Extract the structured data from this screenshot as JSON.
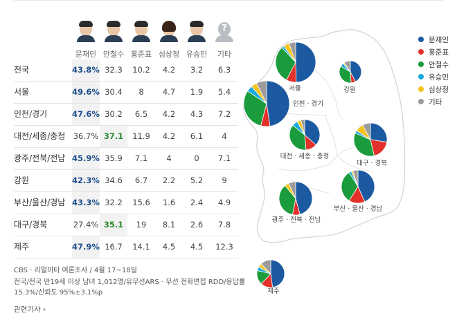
{
  "candidates": [
    "문재인",
    "안철수",
    "홍준표",
    "심상정",
    "유승민",
    "기타"
  ],
  "legend": [
    "문재인",
    "홍준표",
    "안철수",
    "유승민",
    "심상정",
    "기타"
  ],
  "colors": {
    "문재인": "#1b5aa0",
    "홍준표": "#e2312b",
    "안철수": "#1a9b3c",
    "유승민": "#1aa8e0",
    "심상정": "#f4c21c",
    "기타": "#9b9b9b"
  },
  "rows": [
    {
      "region": "전국",
      "values": [
        "43.8%",
        "32.3",
        "10.2",
        "4.2",
        "3.2",
        "6.3"
      ],
      "highlight": 0
    },
    {
      "region": "서울",
      "values": [
        "49.6%",
        "30.4",
        "8",
        "4.7",
        "1.9",
        "5.4"
      ],
      "highlight": 0
    },
    {
      "region": "인천/경기",
      "values": [
        "47.6%",
        "30.2",
        "6.5",
        "4.2",
        "4.3",
        "7.2"
      ],
      "highlight": 0
    },
    {
      "region": "대전/세종/충청",
      "values": [
        "36.7%",
        "37.1",
        "11.9",
        "4.2",
        "6.1",
        "4"
      ],
      "highlight": 1
    },
    {
      "region": "광주/전북/전남",
      "values": [
        "45.9%",
        "35.9",
        "7.1",
        "4",
        "0",
        "7.1"
      ],
      "highlight": 0
    },
    {
      "region": "강원",
      "values": [
        "42.3%",
        "34.6",
        "6.7",
        "2.2",
        "5.2",
        "9"
      ],
      "highlight": 0
    },
    {
      "region": "부산/울산/경남",
      "values": [
        "43.3%",
        "32.2",
        "15.6",
        "1.6",
        "2.4",
        "4.9"
      ],
      "highlight": 0
    },
    {
      "region": "대구/경북",
      "values": [
        "27.4%",
        "35.1",
        "19",
        "8.1",
        "2.6",
        "7.8"
      ],
      "highlight": 1
    },
    {
      "region": "제주",
      "values": [
        "47.9%",
        "16.7",
        "14.1",
        "4.5",
        "4.5",
        "12.3"
      ],
      "highlight": 0
    }
  ],
  "notes": {
    "line1": "CBS · 리얼미터 여론조사 / 4월 17~18일",
    "line2": "전국/전국 만19세 이상 남녀 1,012명/유무선ARS · 무선 전화면접 RDD/응답률",
    "line3": "15.3%/신뢰도 95%±3.1%p",
    "related": "관련기사 ›"
  },
  "chart_data": {
    "type": "pie",
    "title": "",
    "series_order": [
      "문재인",
      "홍준표",
      "안철수",
      "유승민",
      "심상정",
      "기타"
    ],
    "regions": [
      {
        "label": "서울",
        "values": [
          49.6,
          8,
          30.4,
          1.9,
          4.7,
          5.4
        ]
      },
      {
        "label": "강원",
        "values": [
          42.3,
          6.7,
          34.6,
          5.2,
          2.2,
          9
        ]
      },
      {
        "label": "인천 · 경기",
        "values": [
          47.6,
          6.5,
          30.2,
          4.3,
          4.2,
          7.2
        ]
      },
      {
        "label": "대전 · 세종 · 충청",
        "values": [
          36.7,
          11.9,
          37.1,
          6.1,
          4.2,
          4
        ]
      },
      {
        "label": "대구 · 경북",
        "values": [
          27.4,
          19,
          35.1,
          2.6,
          8.1,
          7.8
        ]
      },
      {
        "label": "광주 · 전북 · 전남",
        "values": [
          45.9,
          7.1,
          35.9,
          0,
          4,
          7.1
        ]
      },
      {
        "label": "부산 · 울산 · 경남",
        "values": [
          43.3,
          15.6,
          32.2,
          2.4,
          1.6,
          4.9
        ]
      },
      {
        "label": "제주",
        "values": [
          47.9,
          14.1,
          16.7,
          4.5,
          4.5,
          12.3
        ]
      }
    ]
  }
}
